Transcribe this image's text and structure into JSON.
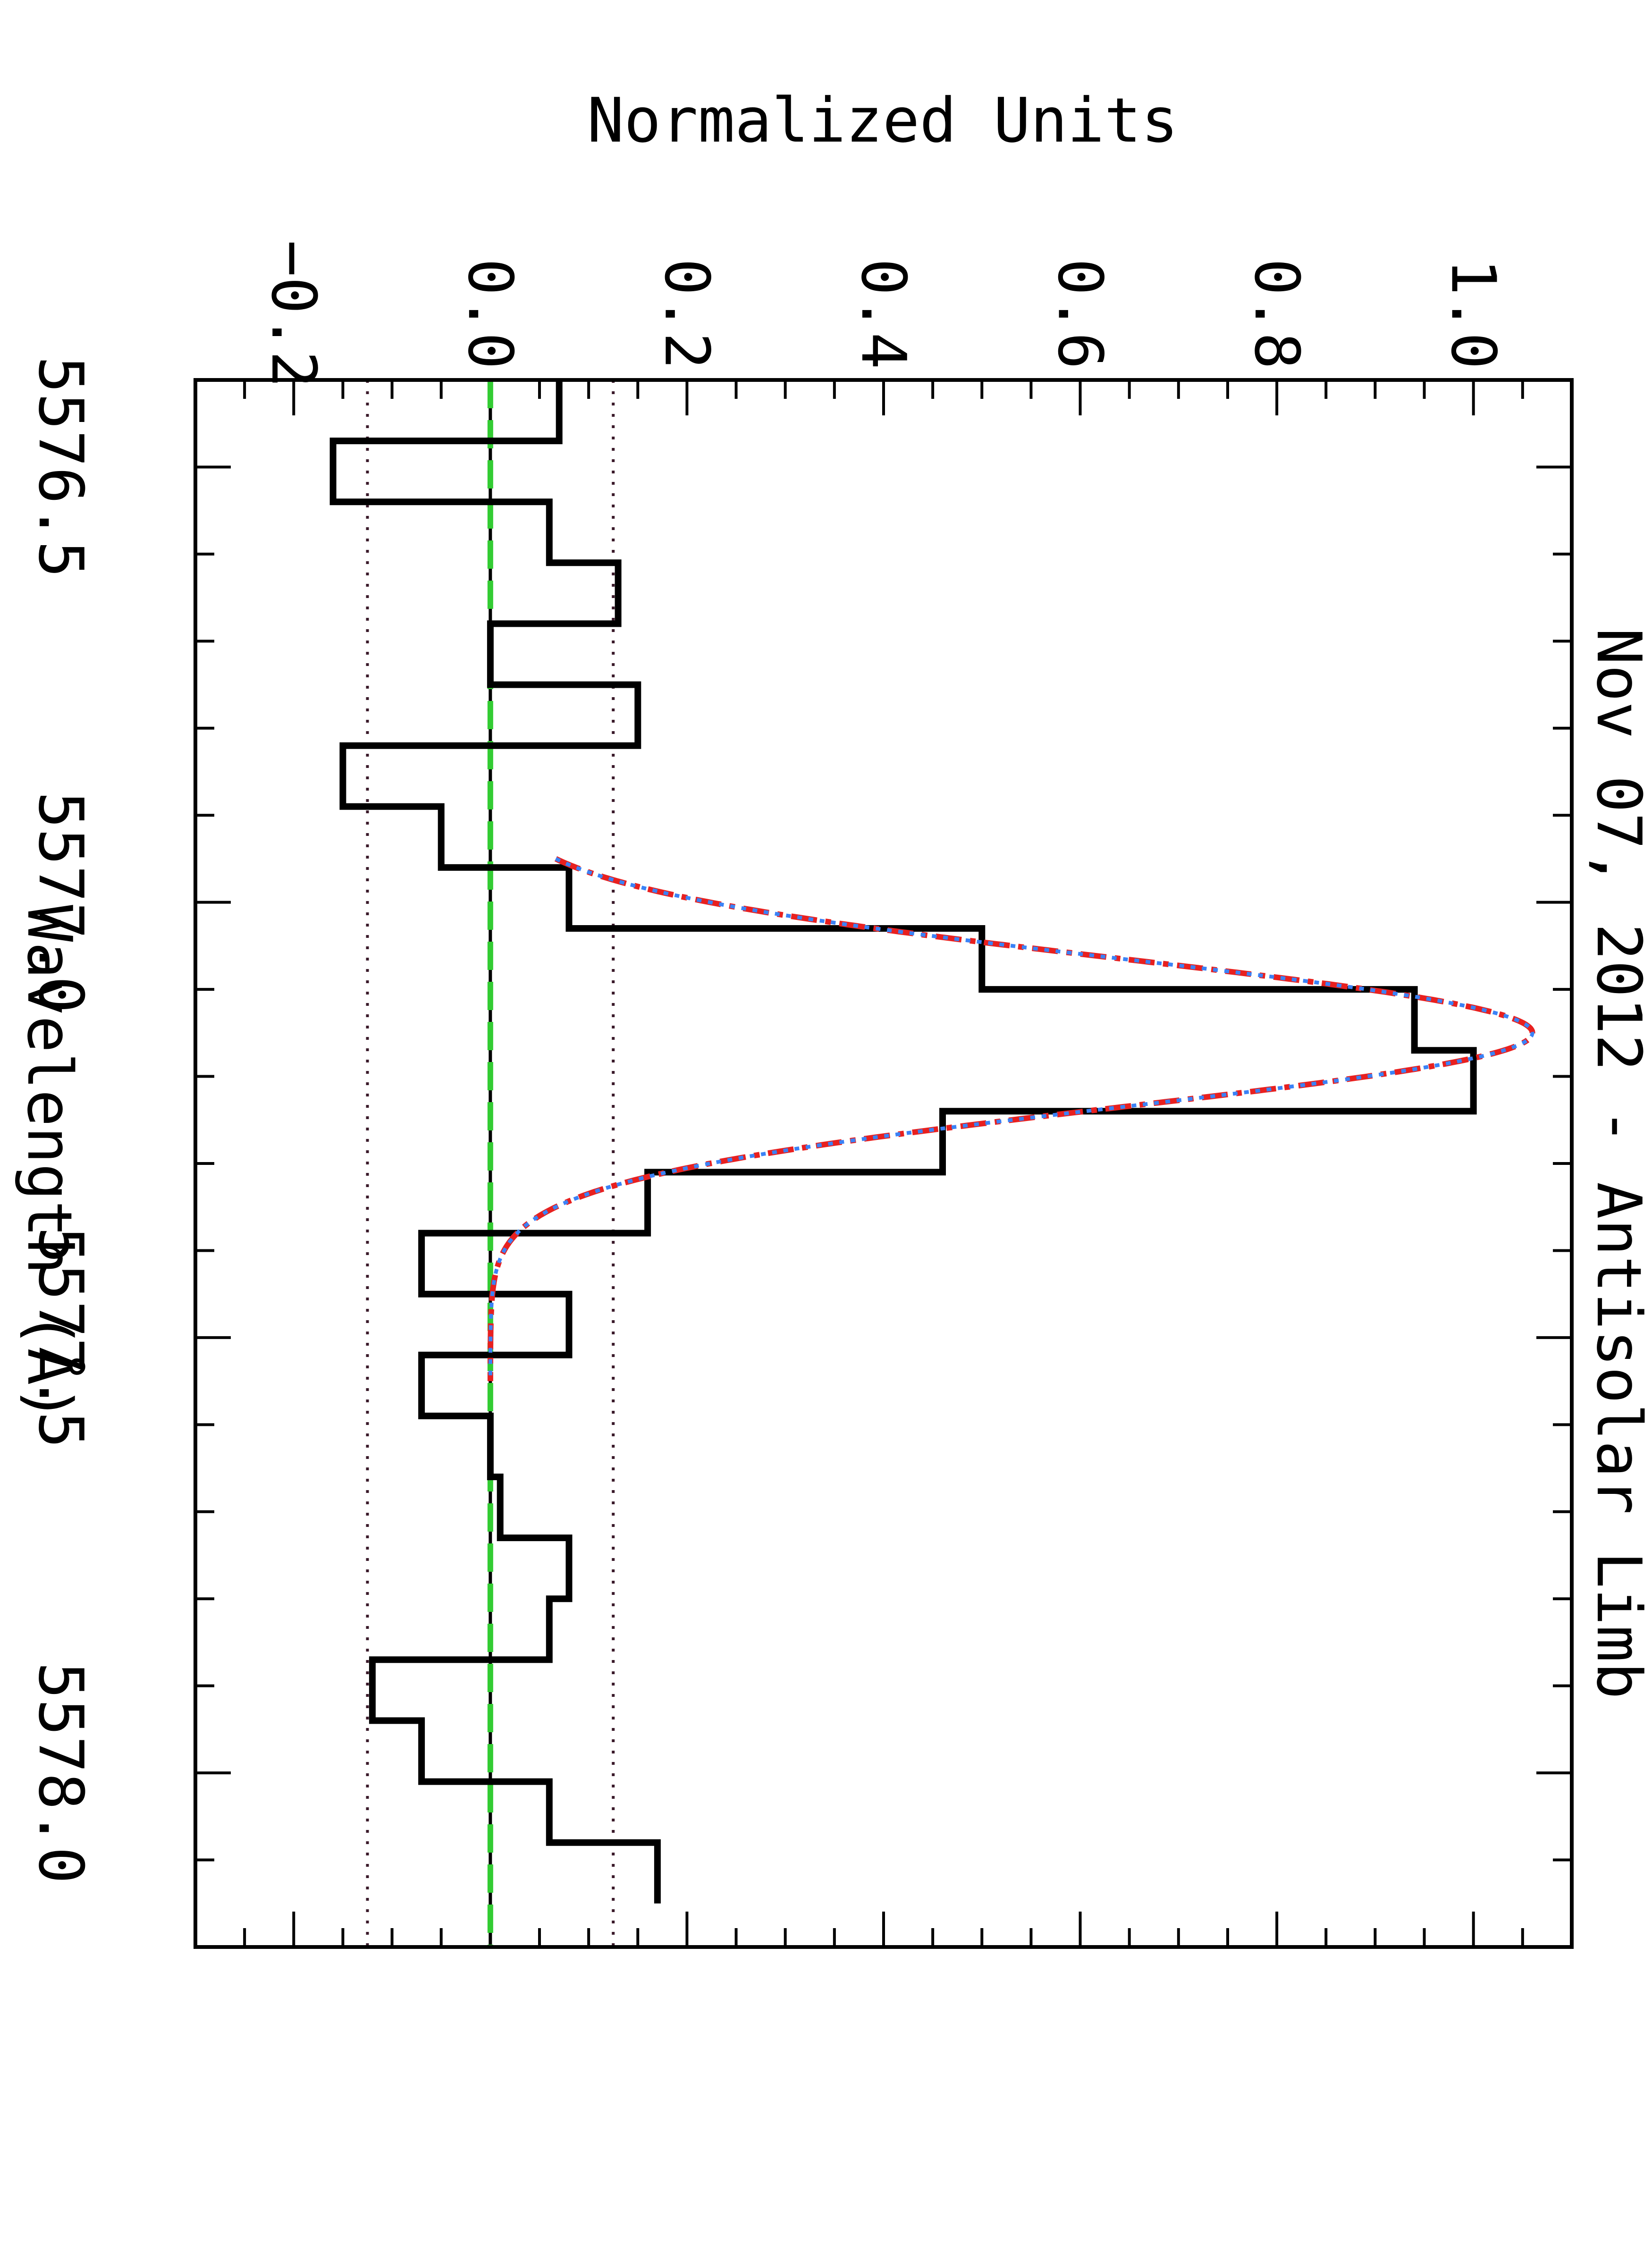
{
  "chart_data": {
    "type": "line",
    "title": "Nov 07, 2012 - Antisolar Limb",
    "xlabel": "Wavelength (Å)",
    "ylabel": "Normalized Units",
    "orientation": "rotated-90-clockwise",
    "xlim": [
      5576.4,
      5578.2
    ],
    "ylim": [
      -0.3,
      1.1
    ],
    "x_ticks": [
      5576.5,
      5577.0,
      5577.5,
      5578.0
    ],
    "x_tick_labels": [
      "5576.5",
      "5577.0",
      "5577.5",
      "5578.0"
    ],
    "y_ticks": [
      -0.2,
      0.0,
      0.2,
      0.4,
      0.6,
      0.8,
      1.0
    ],
    "y_tick_labels": [
      "−0.2",
      "0.0",
      "0.2",
      "0.4",
      "0.6",
      "0.8",
      "1.0"
    ],
    "grid": false,
    "series": [
      {
        "style": "histogram",
        "color": "#000000",
        "bin_width": 0.07,
        "bin_start": 5576.4,
        "values": [
          0.07,
          -0.16,
          0.06,
          0.13,
          0.0,
          0.15,
          -0.15,
          -0.05,
          0.08,
          0.5,
          0.94,
          1.0,
          0.46,
          0.16,
          -0.07,
          0.08,
          -0.07,
          0.0,
          0.01,
          0.08,
          0.06,
          -0.12,
          -0.07,
          0.06,
          0.17
        ]
      },
      {
        "style": "model-fit",
        "color": "#e8201f",
        "dash": "dash-dot",
        "center": 5577.15,
        "amplitude": 1.06,
        "sigma": 0.085
      },
      {
        "style": "model-fit",
        "color": "#3b82f6",
        "dash": "dotted",
        "center": 5577.15,
        "amplitude": 1.06,
        "sigma": 0.085
      },
      {
        "style": "baseline",
        "color": "#33cc33",
        "dash": "dashed",
        "value": 0.0
      }
    ],
    "reference_lines": [
      {
        "value": 0.0,
        "color": "#000000",
        "style": "solid"
      },
      {
        "value": 0.125,
        "color": "#3a1a2a",
        "style": "dotted"
      },
      {
        "value": -0.125,
        "color": "#3a1a2a",
        "style": "dotted"
      }
    ]
  }
}
